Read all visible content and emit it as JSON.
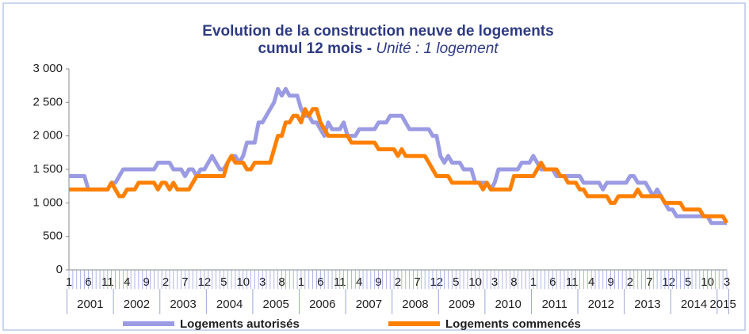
{
  "chart_data": {
    "type": "line",
    "title": "Evolution de la construction neuve de logements",
    "subtitle": "cumul 12 mois -",
    "unit": "Unité : 1 logement",
    "categories": [
      "1",
      null,
      null,
      null,
      null,
      "6",
      null,
      null,
      null,
      null,
      "11",
      null,
      null,
      null,
      null,
      "4",
      null,
      null,
      null,
      null,
      "9",
      null,
      null,
      null,
      null,
      "2",
      null,
      null,
      null,
      null,
      "7",
      null,
      null,
      null,
      null,
      "12",
      null,
      null,
      null,
      null,
      "5",
      null,
      null,
      null,
      null,
      "10",
      null,
      null,
      null,
      null,
      "3",
      null,
      null,
      null,
      null,
      "8",
      null,
      null,
      null,
      null,
      "1",
      null,
      null,
      null,
      null,
      "6",
      null,
      null,
      null,
      null,
      "11",
      null,
      null,
      null,
      null,
      "4",
      null,
      null,
      null,
      null,
      "9",
      null,
      null,
      null,
      null,
      "2",
      null,
      null,
      null,
      null,
      "7",
      null,
      null,
      null,
      null,
      "12",
      null,
      null,
      null,
      null,
      "5",
      null,
      null,
      null,
      null,
      "10",
      null,
      null,
      null,
      null,
      "3",
      null,
      null,
      null,
      null,
      "8",
      null,
      null,
      null,
      null,
      "1",
      null,
      null,
      null,
      null,
      "6",
      null,
      null,
      null,
      null,
      "11",
      null,
      null,
      null,
      null,
      "4",
      null,
      null,
      null,
      null,
      "9",
      null,
      null,
      null,
      null,
      "2",
      null,
      null,
      null,
      null,
      "7",
      null,
      null,
      null,
      null,
      "12",
      null,
      null,
      null,
      null,
      "5",
      null,
      null,
      null,
      null,
      "10",
      null,
      null,
      null,
      null,
      "3"
    ],
    "years": [
      "2001",
      "2002",
      "2003",
      "2004",
      "2005",
      "2006",
      "2007",
      "2008",
      "2009",
      "2010",
      "2011",
      "2012",
      "2013",
      "2014",
      "2015"
    ],
    "series": [
      {
        "name": "Logements autorisés",
        "color": "#9b9be3",
        "values": [
          1400,
          1400,
          1400,
          1400,
          1400,
          1200,
          1200,
          1200,
          1200,
          1200,
          1200,
          1300,
          1300,
          1400,
          1500,
          1500,
          1500,
          1500,
          1500,
          1500,
          1500,
          1500,
          1500,
          1600,
          1600,
          1600,
          1600,
          1500,
          1500,
          1500,
          1400,
          1500,
          1500,
          1400,
          1500,
          1500,
          1600,
          1700,
          1600,
          1500,
          1500,
          1600,
          1700,
          1700,
          1600,
          1700,
          1900,
          1900,
          1900,
          2200,
          2200,
          2300,
          2400,
          2500,
          2700,
          2600,
          2700,
          2600,
          2600,
          2600,
          2400,
          2300,
          2300,
          2200,
          2200,
          2100,
          2000,
          2200,
          2100,
          2100,
          2100,
          2200,
          2000,
          2000,
          2000,
          2100,
          2100,
          2100,
          2100,
          2100,
          2200,
          2200,
          2200,
          2300,
          2300,
          2300,
          2300,
          2200,
          2100,
          2100,
          2100,
          2100,
          2100,
          2100,
          2000,
          2000,
          1700,
          1600,
          1700,
          1600,
          1600,
          1600,
          1500,
          1500,
          1500,
          1300,
          1300,
          1300,
          1300,
          1200,
          1300,
          1500,
          1500,
          1500,
          1500,
          1500,
          1500,
          1600,
          1600,
          1600,
          1700,
          1600,
          1500,
          1500,
          1500,
          1500,
          1400,
          1400,
          1400,
          1400,
          1400,
          1400,
          1400,
          1300,
          1300,
          1300,
          1300,
          1300,
          1200,
          1300,
          1300,
          1300,
          1300,
          1300,
          1300,
          1400,
          1400,
          1300,
          1300,
          1300,
          1200,
          1100,
          1200,
          1100,
          1000,
          900,
          900,
          800,
          800,
          800,
          800,
          800,
          800,
          800,
          800,
          800,
          700,
          700,
          700,
          700,
          700
        ]
      },
      {
        "name": "Logements commencés",
        "color": "#ff8000",
        "values": [
          1200,
          1200,
          1200,
          1200,
          1200,
          1200,
          1200,
          1200,
          1200,
          1200,
          1200,
          1300,
          1200,
          1100,
          1100,
          1200,
          1200,
          1200,
          1300,
          1300,
          1300,
          1300,
          1300,
          1200,
          1300,
          1300,
          1200,
          1300,
          1200,
          1200,
          1200,
          1200,
          1300,
          1400,
          1400,
          1400,
          1400,
          1400,
          1400,
          1400,
          1400,
          1600,
          1700,
          1600,
          1600,
          1600,
          1500,
          1500,
          1600,
          1600,
          1600,
          1600,
          1600,
          1800,
          2000,
          2000,
          2200,
          2200,
          2300,
          2300,
          2200,
          2400,
          2300,
          2400,
          2400,
          2200,
          2100,
          2000,
          2000,
          2000,
          2000,
          2000,
          2000,
          1900,
          1900,
          1900,
          1900,
          1900,
          1900,
          1900,
          1800,
          1800,
          1800,
          1800,
          1800,
          1700,
          1800,
          1700,
          1700,
          1700,
          1700,
          1700,
          1700,
          1600,
          1500,
          1400,
          1400,
          1400,
          1400,
          1300,
          1300,
          1300,
          1300,
          1300,
          1300,
          1300,
          1300,
          1200,
          1300,
          1200,
          1200,
          1200,
          1200,
          1200,
          1200,
          1400,
          1400,
          1400,
          1400,
          1400,
          1400,
          1500,
          1600,
          1500,
          1500,
          1500,
          1500,
          1400,
          1400,
          1300,
          1300,
          1300,
          1200,
          1200,
          1100,
          1100,
          1100,
          1100,
          1100,
          1100,
          1000,
          1000,
          1100,
          1100,
          1100,
          1100,
          1100,
          1200,
          1100,
          1100,
          1100,
          1100,
          1100,
          1100,
          1000,
          1000,
          1000,
          1000,
          1000,
          900,
          900,
          900,
          900,
          900,
          800,
          800,
          800,
          800,
          800,
          800,
          700
        ]
      }
    ],
    "ylim": [
      0,
      3000
    ],
    "yticks": [
      0,
      500,
      {
        "value": 1000,
        "label": "1 000"
      },
      {
        "value": 1500,
        "label": "1 500"
      },
      {
        "value": 2000,
        "label": "2 000"
      },
      {
        "value": 2500,
        "label": "2 500"
      },
      {
        "value": 3000,
        "label": "3 000"
      }
    ],
    "grid": false,
    "legend": "bottom"
  }
}
